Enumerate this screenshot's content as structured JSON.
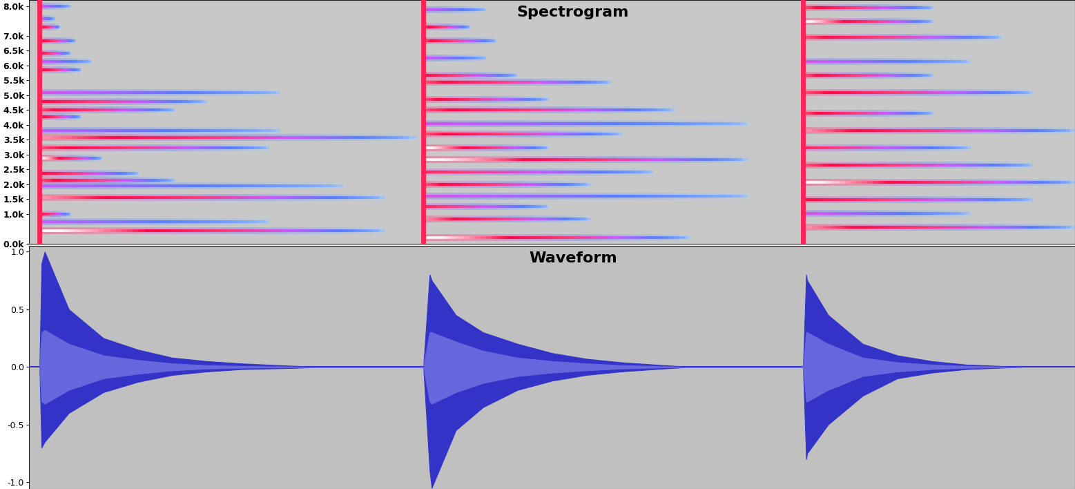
{
  "chart_data": [
    {
      "type": "spectrogram",
      "title": "Spectrogram",
      "xlim": [
        0,
        10
      ],
      "ylim": [
        0,
        8200
      ],
      "yticks": [
        {
          "value": 0,
          "label": "0.0k"
        },
        {
          "value": 1000,
          "label": "1.0k"
        },
        {
          "value": 1500,
          "label": "1.5k"
        },
        {
          "value": 2000,
          "label": "2.0k"
        },
        {
          "value": 2500,
          "label": "2.5k"
        },
        {
          "value": 3000,
          "label": "3.0k"
        },
        {
          "value": 3500,
          "label": "3.5k"
        },
        {
          "value": 4000,
          "label": "4.0k"
        },
        {
          "value": 4500,
          "label": "4.5k"
        },
        {
          "value": 5000,
          "label": "5.0k"
        },
        {
          "value": 5500,
          "label": "5.5k"
        },
        {
          "value": 6000,
          "label": "6.0k"
        },
        {
          "value": 6500,
          "label": "6.5k"
        },
        {
          "value": 7000,
          "label": "7.0k"
        },
        {
          "value": 8000,
          "label": "8.0k"
        }
      ],
      "tick_labels": "y",
      "strikes": [
        {
          "onset": 0.1,
          "frequency": [
            440,
            740,
            1000,
            1560,
            1950,
            2140,
            2370,
            2880,
            3230,
            3580,
            3800,
            4280,
            4510,
            4790,
            5090,
            5860,
            6140,
            6420,
            6840,
            7300,
            7580,
            8000
          ],
          "duration": [
            3.3,
            2.2,
            0.3,
            3.3,
            2.9,
            1.3,
            0.95,
            0.6,
            2.2,
            3.6,
            2.3,
            0.4,
            1.3,
            1.6,
            2.3,
            0.4,
            0.5,
            0.3,
            0.35,
            0.2,
            0.15,
            0.3
          ],
          "level": [
            1.0,
            0.45,
            0.8,
            0.9,
            0.45,
            0.85,
            0.8,
            1.0,
            0.85,
            0.9,
            0.45,
            0.85,
            0.85,
            0.8,
            0.5,
            0.85,
            0.5,
            0.8,
            0.85,
            0.9,
            0.5,
            0.5
          ]
        },
        {
          "onset": 3.77,
          "frequency": [
            210,
            840,
            1260,
            1600,
            2000,
            2420,
            2840,
            3230,
            3700,
            4050,
            4510,
            4860,
            5440,
            5670,
            6260,
            6840,
            7300,
            7880
          ],
          "duration": [
            2.55,
            1.6,
            1.2,
            3.1,
            1.6,
            2.2,
            3.1,
            1.2,
            1.9,
            3.1,
            2.4,
            1.2,
            1.8,
            0.9,
            0.6,
            0.7,
            0.45,
            0.6
          ],
          "level": [
            1.0,
            0.9,
            0.7,
            0.5,
            0.85,
            0.7,
            1.0,
            1.0,
            0.85,
            0.5,
            0.85,
            0.85,
            0.85,
            0.8,
            0.5,
            0.85,
            0.85,
            0.5
          ]
        },
        {
          "onset": 7.4,
          "frequency": [
            560,
            1020,
            1490,
            2070,
            2650,
            3230,
            3810,
            4400,
            5090,
            5670,
            6140,
            6950,
            7490,
            7950
          ],
          "duration": [
            2.6,
            1.6,
            2.2,
            2.6,
            2.2,
            1.6,
            2.6,
            1.25,
            2.2,
            1.25,
            1.6,
            1.9,
            1.25,
            1.25
          ],
          "level": [
            0.9,
            0.5,
            0.8,
            1.0,
            0.85,
            0.7,
            0.9,
            0.85,
            0.85,
            0.85,
            0.5,
            0.85,
            1.0,
            0.85
          ]
        }
      ]
    },
    {
      "type": "area",
      "title": "Waveform",
      "xlim": [
        0,
        10
      ],
      "ylim": [
        -1.06,
        1.05
      ],
      "yticks": [
        1.0,
        0.5,
        0.0,
        -0.5,
        -1.0
      ],
      "tick_labels": "y",
      "baseline": 0.0,
      "series": [
        {
          "color": "#3333c8",
          "x": [
            0.1,
            0.12,
            0.15,
            0.38,
            0.71,
            1.04,
            1.37,
            1.7,
            2.03,
            2.5,
            2.8,
            3.77,
            3.83,
            3.85,
            4.08,
            4.34,
            4.67,
            5.0,
            5.33,
            5.66,
            6.06,
            6.32,
            7.4,
            7.43,
            7.44,
            7.64,
            7.97,
            8.3,
            8.63,
            8.96,
            9.49
          ],
          "upper": [
            0,
            0.9,
            1.0,
            0.5,
            0.25,
            0.15,
            0.08,
            0.05,
            0.03,
            0.01,
            0,
            0,
            0.8,
            0.75,
            0.45,
            0.3,
            0.2,
            0.12,
            0.07,
            0.04,
            0.015,
            0,
            0,
            0.8,
            0.75,
            0.45,
            0.2,
            0.1,
            0.05,
            0.02,
            0
          ],
          "lower": [
            0,
            -0.7,
            -0.65,
            -0.4,
            -0.22,
            -0.13,
            -0.07,
            -0.04,
            -0.02,
            -0.01,
            0,
            0,
            -0.9,
            -1.05,
            -0.55,
            -0.35,
            -0.2,
            -0.12,
            -0.07,
            -0.04,
            -0.015,
            0,
            0,
            -0.8,
            -0.75,
            -0.5,
            -0.25,
            -0.1,
            -0.05,
            -0.02,
            0
          ]
        },
        {
          "color": "#6666dd",
          "x": [
            0.1,
            0.12,
            0.15,
            0.38,
            0.71,
            1.04,
            1.37,
            1.7,
            2.03,
            2.5,
            2.8,
            3.77,
            3.83,
            3.85,
            4.08,
            4.34,
            4.67,
            5.0,
            5.33,
            5.66,
            6.06,
            6.32,
            7.4,
            7.43,
            7.44,
            7.64,
            7.97,
            8.3,
            8.63,
            8.96,
            9.49
          ],
          "upper": [
            0,
            0.3,
            0.32,
            0.2,
            0.1,
            0.06,
            0.03,
            0.015,
            0.008,
            0.003,
            0,
            0,
            0.3,
            0.3,
            0.22,
            0.14,
            0.08,
            0.05,
            0.03,
            0.015,
            0.005,
            0,
            0,
            0.3,
            0.3,
            0.2,
            0.08,
            0.04,
            0.02,
            0.008,
            0
          ],
          "lower": [
            0,
            -0.3,
            -0.32,
            -0.2,
            -0.1,
            -0.06,
            -0.03,
            -0.015,
            -0.008,
            -0.003,
            0,
            0,
            -0.3,
            -0.32,
            -0.22,
            -0.14,
            -0.08,
            -0.05,
            -0.03,
            -0.015,
            -0.005,
            0,
            0,
            -0.3,
            -0.3,
            -0.2,
            -0.08,
            -0.04,
            -0.02,
            -0.008,
            0
          ]
        }
      ]
    }
  ]
}
